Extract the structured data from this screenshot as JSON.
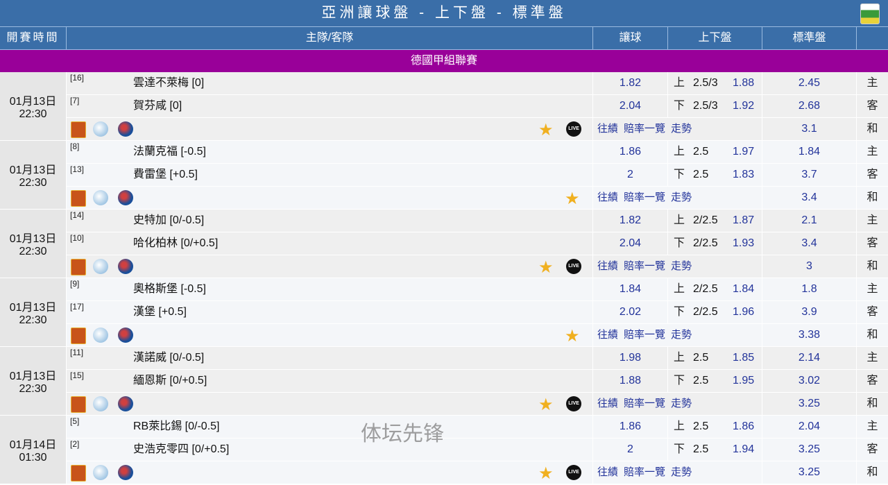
{
  "header": {
    "title": "亞洲讓球盤 - 上下盤 - 標準盤",
    "columns": {
      "time": "開賽時間",
      "teams": "主隊/客隊",
      "handicap": "讓球",
      "over_under": "上下盤",
      "standard": "標準盤",
      "label": ""
    }
  },
  "league": "德國甲組聯賽",
  "links": [
    "往績",
    "賠率一覽",
    "走勢"
  ],
  "row_labels": [
    "主",
    "客",
    "和"
  ],
  "ou_sides": [
    "上",
    "下"
  ],
  "live_label": "LIVE",
  "watermark": "体坛先锋",
  "matches": [
    {
      "date": "01月13日",
      "time": "22:30",
      "home": {
        "rank": "[16]",
        "name": "雲達不萊梅 [0]",
        "hc": "1.82",
        "line": "2.5/3",
        "ou": "1.88",
        "std": "2.45"
      },
      "away": {
        "rank": "[7]",
        "name": "賀芬咸 [0]",
        "hc": "2.04",
        "line": "2.5/3",
        "ou": "1.92",
        "std": "2.68"
      },
      "draw": "3.1",
      "live": true
    },
    {
      "date": "01月13日",
      "time": "22:30",
      "home": {
        "rank": "[8]",
        "name": "法蘭克福 [-0.5]",
        "hc": "1.86",
        "line": "2.5",
        "ou": "1.97",
        "std": "1.84"
      },
      "away": {
        "rank": "[13]",
        "name": "費雷堡 [+0.5]",
        "hc": "2",
        "line": "2.5",
        "ou": "1.83",
        "std": "3.7"
      },
      "draw": "3.4",
      "live": false
    },
    {
      "date": "01月13日",
      "time": "22:30",
      "home": {
        "rank": "[14]",
        "name": "史特加 [0/-0.5]",
        "hc": "1.82",
        "line": "2/2.5",
        "ou": "1.87",
        "std": "2.1"
      },
      "away": {
        "rank": "[10]",
        "name": "哈化柏林 [0/+0.5]",
        "hc": "2.04",
        "line": "2/2.5",
        "ou": "1.93",
        "std": "3.4"
      },
      "draw": "3",
      "live": true
    },
    {
      "date": "01月13日",
      "time": "22:30",
      "home": {
        "rank": "[9]",
        "name": "奧格斯堡 [-0.5]",
        "hc": "1.84",
        "line": "2/2.5",
        "ou": "1.84",
        "std": "1.8"
      },
      "away": {
        "rank": "[17]",
        "name": "漢堡 [+0.5]",
        "hc": "2.02",
        "line": "2/2.5",
        "ou": "1.96",
        "std": "3.9"
      },
      "draw": "3.38",
      "live": false
    },
    {
      "date": "01月13日",
      "time": "22:30",
      "home": {
        "rank": "[11]",
        "name": "漢諾威 [0/-0.5]",
        "hc": "1.98",
        "line": "2.5",
        "ou": "1.85",
        "std": "2.14"
      },
      "away": {
        "rank": "[15]",
        "name": "緬恩斯 [0/+0.5]",
        "hc": "1.88",
        "line": "2.5",
        "ou": "1.95",
        "std": "3.02"
      },
      "draw": "3.25",
      "live": true
    },
    {
      "date": "01月14日",
      "time": "01:30",
      "home": {
        "rank": "[5]",
        "name": "RB萊比錫 [0/-0.5]",
        "hc": "1.86",
        "line": "2.5",
        "ou": "1.86",
        "std": "2.04"
      },
      "away": {
        "rank": "[2]",
        "name": "史浩克零四 [0/+0.5]",
        "hc": "2",
        "line": "2.5",
        "ou": "1.94",
        "std": "3.25"
      },
      "draw": "3.25",
      "live": true
    }
  ]
}
